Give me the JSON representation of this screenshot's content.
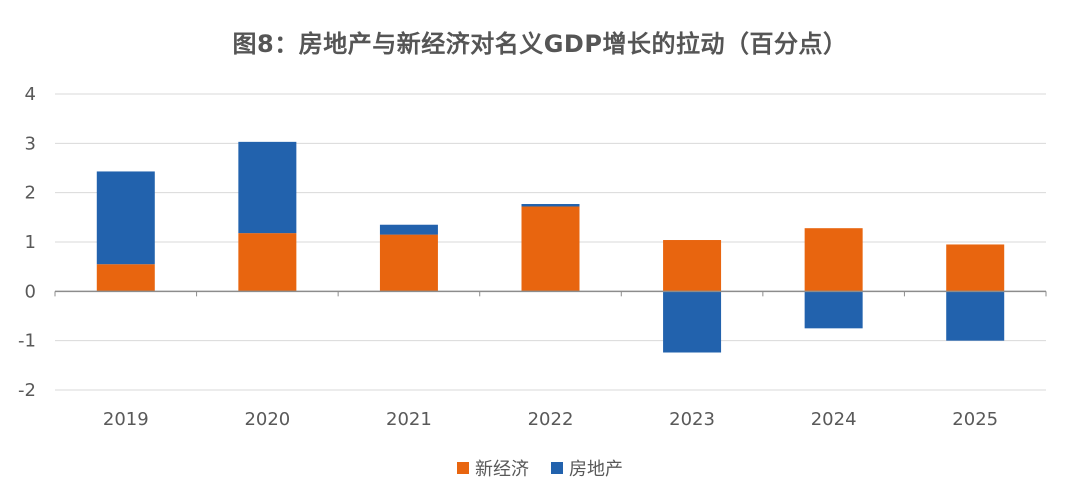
{
  "chart_data": {
    "type": "bar",
    "stacked": true,
    "title": "图8：房地产与新经济对名义GDP增长的拉动（百分点）",
    "categories": [
      "2019",
      "2020",
      "2021",
      "2022",
      "2023",
      "2024",
      "2025"
    ],
    "series": [
      {
        "name": "新经济",
        "color": "#E8650F",
        "values": [
          0.55,
          1.18,
          1.15,
          1.72,
          1.04,
          1.28,
          0.95
        ]
      },
      {
        "name": "房地产",
        "color": "#2262AD",
        "values": [
          1.88,
          1.85,
          0.2,
          0.05,
          -1.24,
          -0.75,
          -1.0
        ]
      }
    ],
    "ylim": [
      -2,
      4
    ],
    "yticks": [
      "-2",
      "-1",
      "0",
      "1",
      "2",
      "3",
      "4"
    ],
    "grid": true,
    "legend_position": "bottom"
  }
}
